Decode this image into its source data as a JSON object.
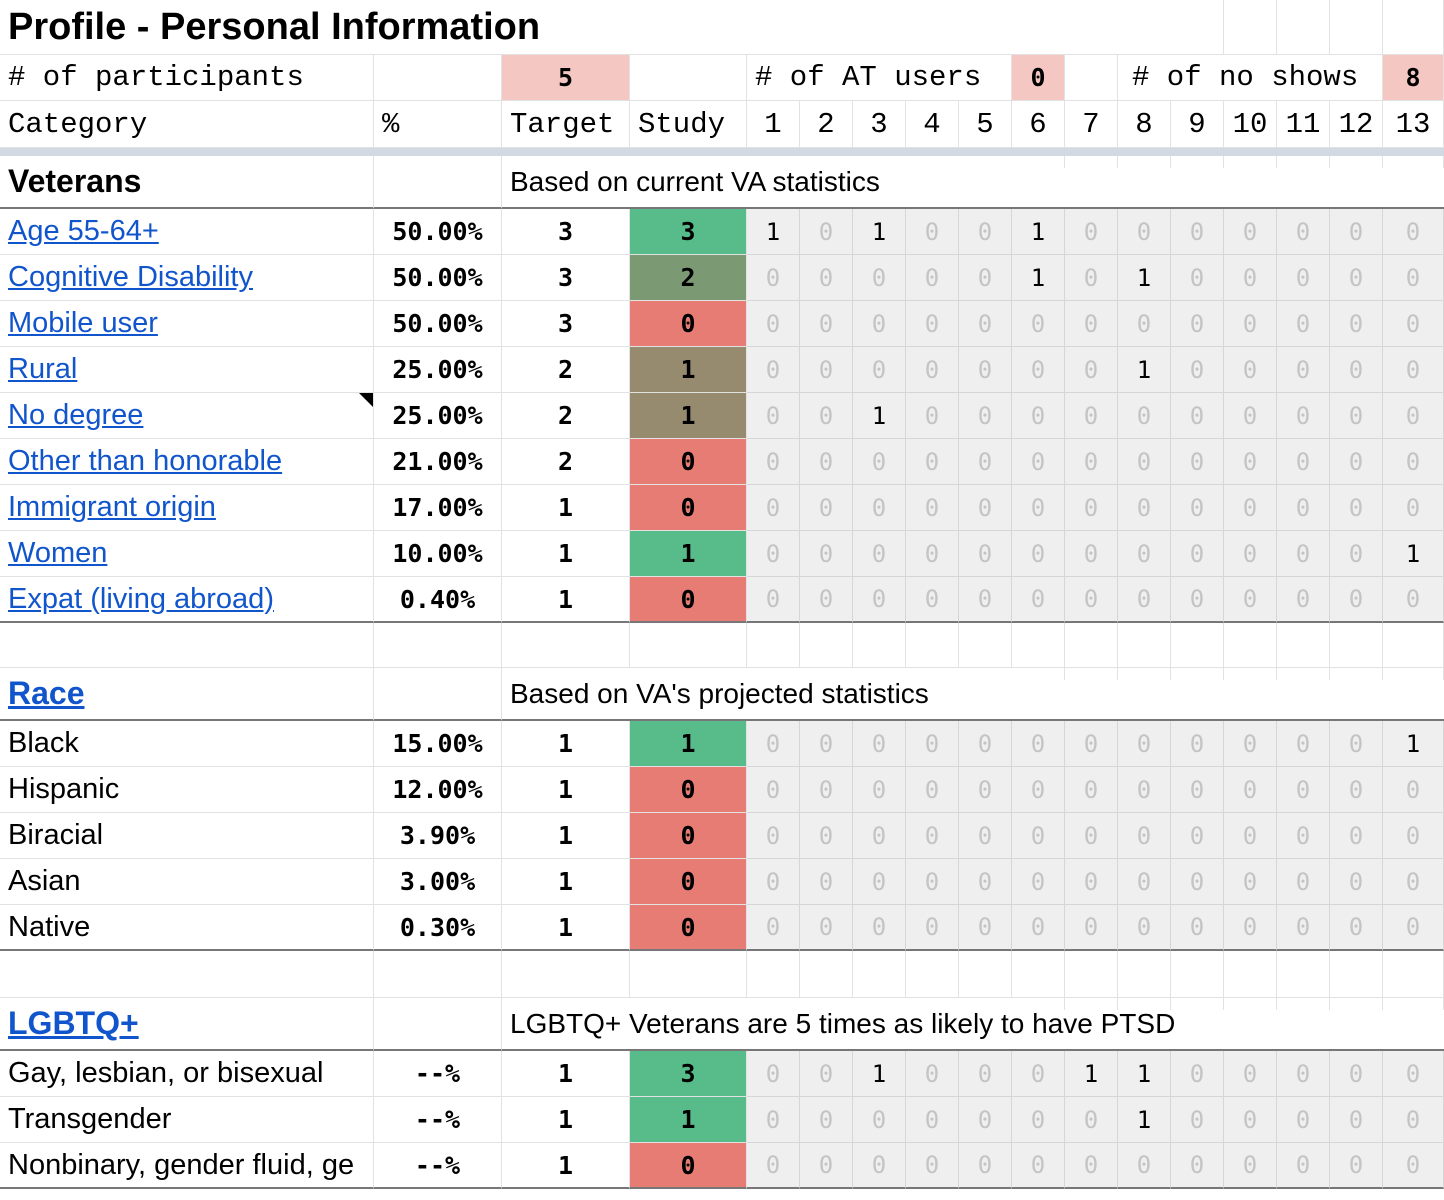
{
  "title": "Profile - Personal Information",
  "summary": {
    "participants_label": "# of participants",
    "participants_value": "5",
    "at_users_label": "# of AT users",
    "at_users_value": "0",
    "no_shows_label": "# of no shows",
    "no_shows_value": "8"
  },
  "headers": {
    "category": "Category",
    "pct": "%",
    "target": "Target",
    "study": "Study",
    "participants": [
      "1",
      "2",
      "3",
      "4",
      "5",
      "6",
      "7",
      "8",
      "9",
      "10",
      "11",
      "12",
      "13"
    ]
  },
  "colors": {
    "summary_bg": "#f4c7c3",
    "study_green": "#57bb8a",
    "study_olive_green": "#7b9a73",
    "study_olive": "#968b6f",
    "study_red": "#e67c73",
    "link": "#1155cc",
    "participant_bg": "#efefef"
  },
  "sections": [
    {
      "title": "Veterans",
      "title_is_link": false,
      "note": "Based on current VA statistics",
      "rows": [
        {
          "category": "Age 55-64+",
          "link": true,
          "pct": "50.00%",
          "target": "3",
          "study": "3",
          "status": "green",
          "p": [
            "1",
            "0",
            "1",
            "0",
            "0",
            "1",
            "0",
            "0",
            "0",
            "0",
            "0",
            "0",
            "0"
          ]
        },
        {
          "category": "Cognitive Disability",
          "link": true,
          "pct": "50.00%",
          "target": "3",
          "study": "2",
          "status": "olive-green",
          "p": [
            "0",
            "0",
            "0",
            "0",
            "0",
            "1",
            "0",
            "1",
            "0",
            "0",
            "0",
            "0",
            "0"
          ]
        },
        {
          "category": "Mobile user",
          "link": true,
          "pct": "50.00%",
          "target": "3",
          "study": "0",
          "status": "red",
          "p": [
            "0",
            "0",
            "0",
            "0",
            "0",
            "0",
            "0",
            "0",
            "0",
            "0",
            "0",
            "0",
            "0"
          ]
        },
        {
          "category": "Rural",
          "link": true,
          "pct": "25.00%",
          "target": "2",
          "study": "1",
          "status": "olive",
          "p": [
            "0",
            "0",
            "0",
            "0",
            "0",
            "0",
            "0",
            "1",
            "0",
            "0",
            "0",
            "0",
            "0"
          ]
        },
        {
          "category": "No degree",
          "link": true,
          "pct": "25.00%",
          "target": "2",
          "study": "1",
          "status": "olive",
          "p": [
            "0",
            "0",
            "1",
            "0",
            "0",
            "0",
            "0",
            "0",
            "0",
            "0",
            "0",
            "0",
            "0"
          ],
          "comment": true
        },
        {
          "category": "Other than honorable",
          "link": true,
          "pct": "21.00%",
          "target": "2",
          "study": "0",
          "status": "red",
          "p": [
            "0",
            "0",
            "0",
            "0",
            "0",
            "0",
            "0",
            "0",
            "0",
            "0",
            "0",
            "0",
            "0"
          ]
        },
        {
          "category": "Immigrant origin",
          "link": true,
          "pct": "17.00%",
          "target": "1",
          "study": "0",
          "status": "red",
          "p": [
            "0",
            "0",
            "0",
            "0",
            "0",
            "0",
            "0",
            "0",
            "0",
            "0",
            "0",
            "0",
            "0"
          ]
        },
        {
          "category": "Women",
          "link": true,
          "pct": "10.00%",
          "target": "1",
          "study": "1",
          "status": "green",
          "p": [
            "0",
            "0",
            "0",
            "0",
            "0",
            "0",
            "0",
            "0",
            "0",
            "0",
            "0",
            "0",
            "1"
          ]
        },
        {
          "category": "Expat (living abroad)",
          "link": true,
          "pct": "0.40%",
          "target": "1",
          "study": "0",
          "status": "red",
          "p": [
            "0",
            "0",
            "0",
            "0",
            "0",
            "0",
            "0",
            "0",
            "0",
            "0",
            "0",
            "0",
            "0"
          ]
        }
      ]
    },
    {
      "title": "Race",
      "title_is_link": true,
      "note": "Based on VA's projected statistics",
      "rows": [
        {
          "category": "Black",
          "link": false,
          "pct": "15.00%",
          "target": "1",
          "study": "1",
          "status": "green",
          "p": [
            "0",
            "0",
            "0",
            "0",
            "0",
            "0",
            "0",
            "0",
            "0",
            "0",
            "0",
            "0",
            "1"
          ]
        },
        {
          "category": "Hispanic",
          "link": false,
          "pct": "12.00%",
          "target": "1",
          "study": "0",
          "status": "red",
          "p": [
            "0",
            "0",
            "0",
            "0",
            "0",
            "0",
            "0",
            "0",
            "0",
            "0",
            "0",
            "0",
            "0"
          ]
        },
        {
          "category": "Biracial",
          "link": false,
          "pct": "3.90%",
          "target": "1",
          "study": "0",
          "status": "red",
          "p": [
            "0",
            "0",
            "0",
            "0",
            "0",
            "0",
            "0",
            "0",
            "0",
            "0",
            "0",
            "0",
            "0"
          ]
        },
        {
          "category": "Asian",
          "link": false,
          "pct": "3.00%",
          "target": "1",
          "study": "0",
          "status": "red",
          "p": [
            "0",
            "0",
            "0",
            "0",
            "0",
            "0",
            "0",
            "0",
            "0",
            "0",
            "0",
            "0",
            "0"
          ]
        },
        {
          "category": "Native",
          "link": false,
          "pct": "0.30%",
          "target": "1",
          "study": "0",
          "status": "red",
          "p": [
            "0",
            "0",
            "0",
            "0",
            "0",
            "0",
            "0",
            "0",
            "0",
            "0",
            "0",
            "0",
            "0"
          ]
        }
      ]
    },
    {
      "title": "LGBTQ+",
      "title_is_link": true,
      "note": "LGBTQ+ Veterans are 5 times as likely to have PTSD",
      "rows": [
        {
          "category": "Gay, lesbian, or bisexual",
          "link": false,
          "pct": "--%",
          "target": "1",
          "study": "3",
          "status": "green",
          "p": [
            "0",
            "0",
            "1",
            "0",
            "0",
            "0",
            "1",
            "1",
            "0",
            "0",
            "0",
            "0",
            "0"
          ]
        },
        {
          "category": "Transgender",
          "link": false,
          "pct": "--%",
          "target": "1",
          "study": "1",
          "status": "green",
          "p": [
            "0",
            "0",
            "0",
            "0",
            "0",
            "0",
            "0",
            "1",
            "0",
            "0",
            "0",
            "0",
            "0"
          ]
        },
        {
          "category": "Nonbinary, gender fluid, ge",
          "link": false,
          "pct": "--%",
          "target": "1",
          "study": "0",
          "status": "red",
          "p": [
            "0",
            "0",
            "0",
            "0",
            "0",
            "0",
            "0",
            "0",
            "0",
            "0",
            "0",
            "0",
            "0"
          ]
        }
      ]
    }
  ]
}
